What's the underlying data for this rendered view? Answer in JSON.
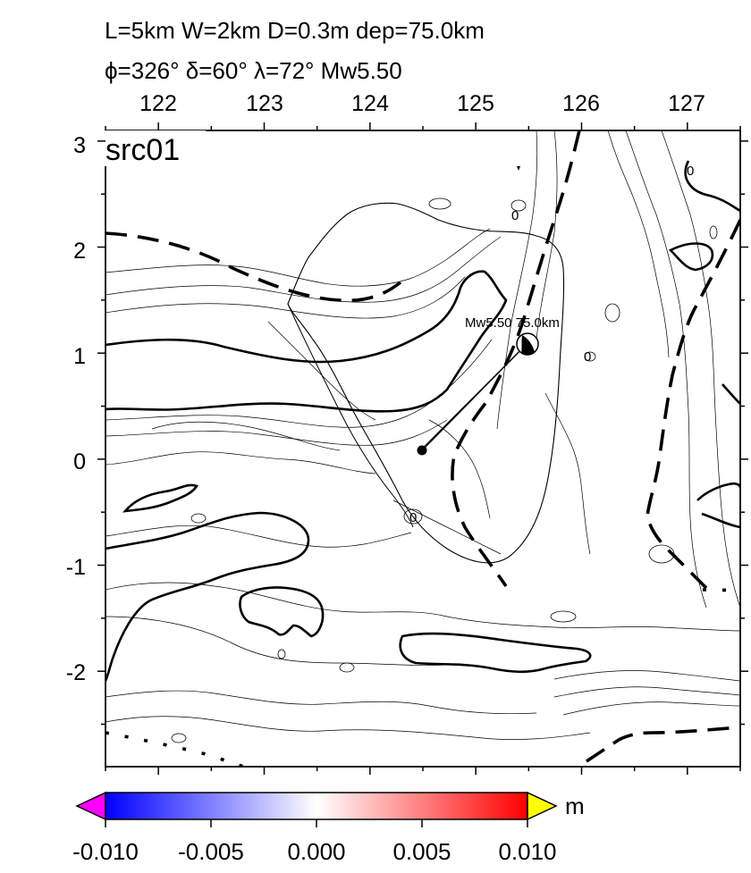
{
  "header": {
    "line1": "L=5km W=2km D=0.3m dep=75.0km",
    "line2": "ϕ=326° δ=60° λ=72° Mw5.50"
  },
  "panel_label": "src01",
  "map": {
    "x_ticks": [
      "122",
      "123",
      "124",
      "125",
      "126",
      "127"
    ],
    "y_ticks": [
      "3",
      "2",
      "1",
      "0",
      "-1",
      "-2"
    ],
    "x_range": [
      121.5,
      127.5
    ],
    "y_range": [
      -2.9,
      3.1
    ],
    "contour_labels": [
      "0",
      "0",
      "0",
      "0"
    ],
    "epicenter": {
      "lon": 125.5,
      "lat": 1.1,
      "label": "Mw5.50 75.0km"
    },
    "fault_origin": {
      "lon": 124.5,
      "lat": 0.1
    }
  },
  "colorbar": {
    "unit": "m",
    "ticks": [
      "-0.010",
      "-0.005",
      "0.000",
      "0.005",
      "0.010"
    ],
    "range": [
      -0.01,
      0.01
    ],
    "colors": {
      "low_extension": "#ff00ff",
      "low": "#0000ff",
      "mid": "#ffffff",
      "high": "#ff0000",
      "high_extension": "#ffff00"
    }
  }
}
